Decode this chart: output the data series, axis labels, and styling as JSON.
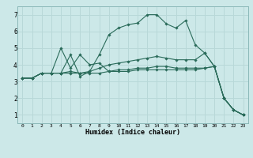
{
  "xlabel": "Humidex (Indice chaleur)",
  "background_color": "#cce8e8",
  "grid_color": "#b8d8d8",
  "line_color": "#2a6b5a",
  "xlim": [
    -0.5,
    23.5
  ],
  "ylim": [
    0.5,
    7.5
  ],
  "xticks": [
    0,
    1,
    2,
    3,
    4,
    5,
    6,
    7,
    8,
    9,
    10,
    11,
    12,
    13,
    14,
    15,
    16,
    17,
    18,
    19,
    20,
    21,
    22,
    23
  ],
  "yticks": [
    1,
    2,
    3,
    4,
    5,
    6,
    7
  ],
  "lines": [
    {
      "x": [
        0,
        1,
        2,
        3,
        4,
        5,
        6,
        7,
        8,
        9,
        10,
        11,
        12,
        13,
        14,
        15,
        16,
        17,
        18,
        19,
        20,
        21,
        22,
        23
      ],
      "y": [
        3.2,
        3.2,
        3.5,
        3.5,
        3.5,
        4.6,
        3.3,
        3.6,
        4.6,
        5.8,
        6.2,
        6.4,
        6.5,
        7.0,
        7.0,
        6.45,
        6.2,
        6.65,
        5.2,
        4.7,
        3.9,
        2.0,
        1.3,
        1.0
      ]
    },
    {
      "x": [
        0,
        1,
        2,
        3,
        4,
        5,
        6,
        7,
        8,
        9,
        10,
        11,
        12,
        13,
        14,
        15,
        16,
        17,
        18,
        19,
        20,
        21,
        22,
        23
      ],
      "y": [
        3.2,
        3.2,
        3.5,
        3.5,
        3.5,
        3.6,
        3.5,
        3.6,
        3.8,
        4.0,
        4.1,
        4.2,
        4.3,
        4.4,
        4.5,
        4.4,
        4.3,
        4.3,
        4.3,
        4.7,
        3.9,
        2.0,
        1.3,
        1.0
      ]
    },
    {
      "x": [
        0,
        1,
        2,
        3,
        4,
        5,
        6,
        7,
        8,
        9,
        10,
        11,
        12,
        13,
        14,
        15,
        16,
        17,
        18,
        19,
        20,
        21,
        22,
        23
      ],
      "y": [
        3.2,
        3.2,
        3.5,
        3.5,
        5.0,
        3.8,
        4.6,
        4.0,
        4.1,
        3.6,
        3.7,
        3.7,
        3.8,
        3.8,
        3.9,
        3.9,
        3.8,
        3.8,
        3.8,
        3.8,
        3.9,
        2.0,
        1.3,
        1.0
      ]
    },
    {
      "x": [
        0,
        1,
        2,
        3,
        4,
        5,
        6,
        7,
        8,
        9,
        10,
        11,
        12,
        13,
        14,
        15,
        16,
        17,
        18,
        19,
        20,
        21,
        22,
        23
      ],
      "y": [
        3.2,
        3.2,
        3.5,
        3.5,
        3.5,
        3.5,
        3.5,
        3.5,
        3.5,
        3.6,
        3.6,
        3.6,
        3.7,
        3.7,
        3.7,
        3.7,
        3.7,
        3.7,
        3.7,
        3.8,
        3.9,
        2.0,
        1.3,
        1.0
      ]
    }
  ]
}
